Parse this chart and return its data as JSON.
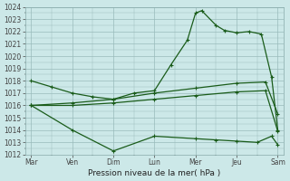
{
  "title": "",
  "xlabel": "Pression niveau de la mer( hPa )",
  "ylabel": "",
  "background_color": "#cce8e8",
  "grid_color": "#99bbbb",
  "line_color": "#1a5c1a",
  "ylim": [
    1012,
    1024
  ],
  "yticks": [
    1012,
    1013,
    1014,
    1015,
    1016,
    1017,
    1018,
    1019,
    1020,
    1021,
    1022,
    1023,
    1024
  ],
  "x_labels": [
    "Mar",
    "Ven",
    "Dim",
    "Lun",
    "Mer",
    "Jeu",
    "Sam"
  ],
  "x_positions": [
    0,
    1,
    2,
    3,
    4,
    5,
    6
  ],
  "lines": [
    {
      "x": [
        0,
        0.5,
        1.0,
        1.5,
        2.0,
        2.5,
        3.0,
        3.4,
        3.8,
        4.0,
        4.15,
        4.5,
        4.7,
        5.0,
        5.3,
        5.6,
        5.85,
        6.0
      ],
      "y": [
        1018.0,
        1017.5,
        1017.0,
        1016.7,
        1016.5,
        1017.0,
        1017.2,
        1019.3,
        1021.3,
        1023.5,
        1023.7,
        1022.5,
        1022.1,
        1021.9,
        1022.0,
        1021.8,
        1018.3,
        1014.0
      ]
    },
    {
      "x": [
        0,
        1,
        2,
        3,
        4,
        5,
        5.7,
        6.0
      ],
      "y": [
        1016.0,
        1016.2,
        1016.5,
        1017.0,
        1017.4,
        1017.8,
        1017.9,
        1015.3
      ]
    },
    {
      "x": [
        0,
        1,
        2,
        3,
        4,
        5,
        5.7,
        6.0
      ],
      "y": [
        1016.0,
        1016.0,
        1016.2,
        1016.5,
        1016.8,
        1017.1,
        1017.2,
        1013.9
      ]
    },
    {
      "x": [
        0,
        1.0,
        2.0,
        3.0,
        4.0,
        4.5,
        5.0,
        5.5,
        5.85,
        6.0
      ],
      "y": [
        1016.0,
        1014.0,
        1012.3,
        1013.5,
        1013.3,
        1013.2,
        1013.1,
        1013.0,
        1013.5,
        1012.8
      ]
    }
  ]
}
